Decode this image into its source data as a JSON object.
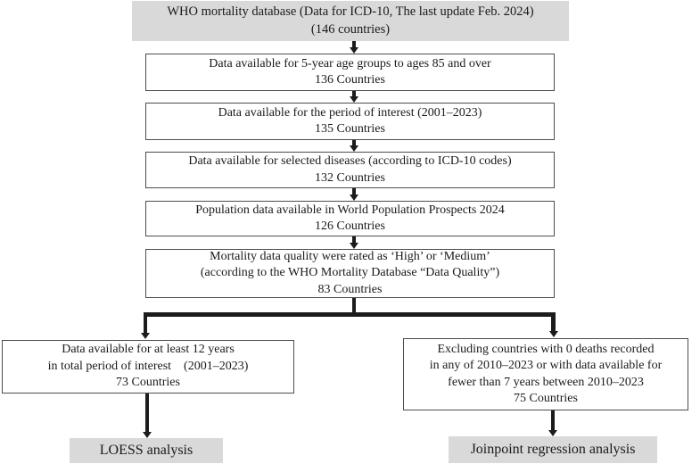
{
  "colors": {
    "gray_fill": "#d9d9d9",
    "box_border": "#4d4d4d",
    "arrow_black": "#1c1c1c"
  },
  "top_box": {
    "line1": "WHO mortality database (Data for ICD-10, The last update Feb. 2024)",
    "line2": "(146 countries)"
  },
  "steps": [
    {
      "line1": "Data available for 5-year age groups to ages 85 and over",
      "line2": "136 Countries"
    },
    {
      "line1": "Data available for the period of interest (2001–2023)",
      "line2": "135 Countries"
    },
    {
      "line1": "Data available for selected diseases (according to ICD-10 codes)",
      "line2": "132 Countries"
    },
    {
      "line1": "Population data available in World Population Prospects 2024",
      "line2": "126 Countries"
    },
    {
      "line1": "Mortality data quality were rated as ‘High’ or ‘Medium’",
      "line2": "(according to the WHO Mortality Database “Data Quality”)",
      "line3": "83 Countries"
    }
  ],
  "left_branch": {
    "line1": "Data available for at least 12 years",
    "line2": "in total period of interest  (2001–2023)",
    "line3": "73 Countries"
  },
  "right_branch": {
    "line1": "Excluding countries with 0 deaths recorded",
    "line2": "in any of 2010–2023 or with data available for",
    "line3": "fewer than 7 years between 2010–2023",
    "line4": "75 Countries"
  },
  "left_result": {
    "label": "LOESS analysis"
  },
  "right_result": {
    "label": "Joinpoint regression analysis"
  }
}
